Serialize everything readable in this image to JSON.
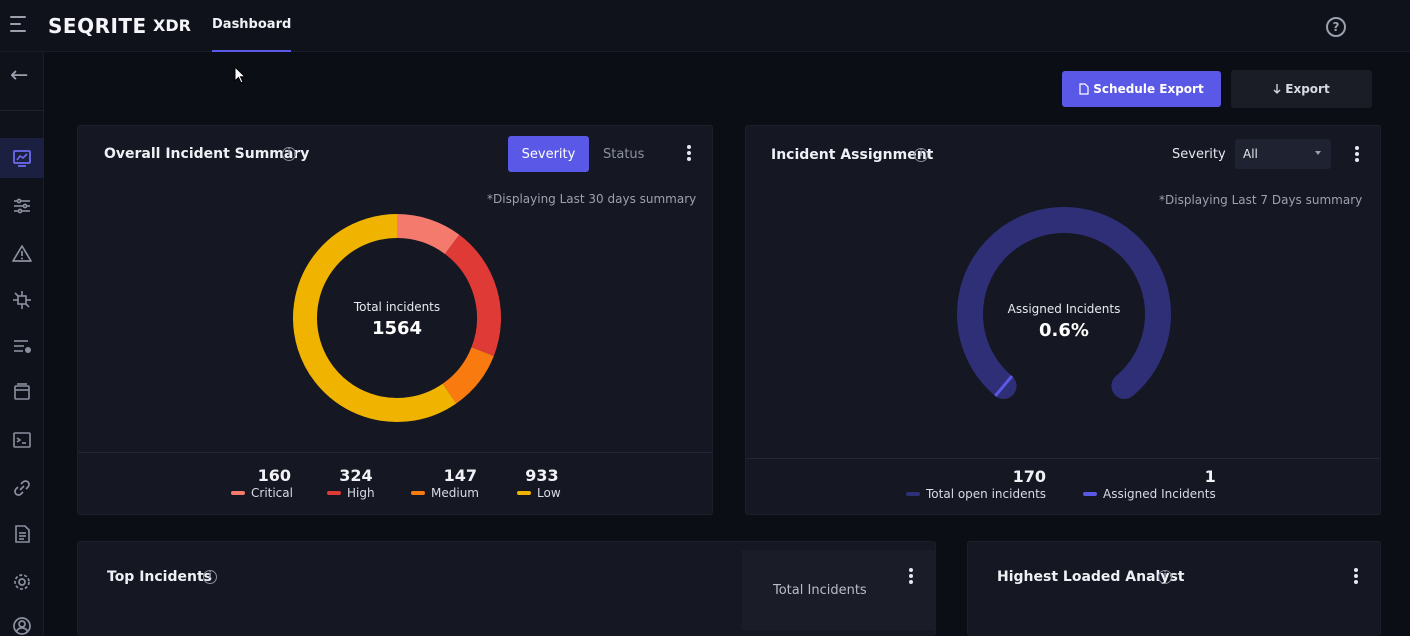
{
  "header": {
    "logo": "SEQRITE",
    "product": "XDR",
    "nav_tab": "Dashboard",
    "help_icon": "?"
  },
  "sidebar": {
    "icons": [
      "back-arrow-icon",
      "dashboard-icon",
      "filters-icon",
      "alert-icon",
      "network-icon",
      "list-icon",
      "archive-icon",
      "terminal-icon",
      "link-icon",
      "document-icon",
      "settings-icon",
      "user-icon"
    ]
  },
  "actions": {
    "schedule_export": "Schedule Export",
    "export": "Export"
  },
  "overall": {
    "title": "Overall Incident Summary",
    "seg_severity": "Severity",
    "seg_status": "Status",
    "note": "*Displaying Last 30 days summary",
    "center_label": "Total incidents",
    "center_value": "1564",
    "legend": [
      {
        "value": "160",
        "label": "Critical",
        "color": "#f47a6d"
      },
      {
        "value": "324",
        "label": "High",
        "color": "#e03a36"
      },
      {
        "value": "147",
        "label": "Medium",
        "color": "#f97b10"
      },
      {
        "value": "933",
        "label": "Low",
        "color": "#f0b400"
      }
    ]
  },
  "assignment": {
    "title": "Incident Assignment",
    "severity_label": "Severity",
    "severity_value": "All",
    "note": "*Displaying Last 7 Days summary",
    "center_label": "Assigned Incidents",
    "center_value": "0.6%",
    "percent": 0.6,
    "total_value": "170",
    "total_label": "Total open incidents",
    "total_color": "#2f2f78",
    "assigned_value": "1",
    "assigned_label": "Assigned Incidents",
    "assigned_color": "#5a58e6"
  },
  "top_incidents": {
    "title": "Top Incidents",
    "tab": "Total Incidents"
  },
  "highest_loaded": {
    "title": "Highest Loaded Analyst"
  },
  "colors": {
    "accent": "#5a58e6",
    "bg": "#0c0e16",
    "card": "#151722"
  }
}
